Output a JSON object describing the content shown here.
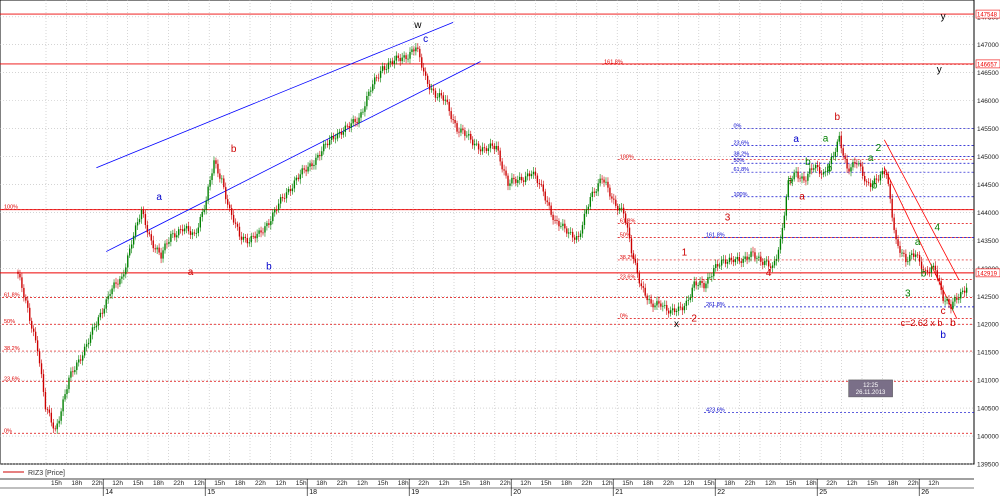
{
  "chart_data": {
    "type": "candlestick",
    "symbol_legend": "RIZ3 [Price]",
    "ylim": [
      139500,
      147800
    ],
    "price_ticks": [
      139500,
      140000,
      140500,
      141000,
      141500,
      142000,
      142500,
      143000,
      143500,
      144000,
      144500,
      145000,
      145500,
      146000,
      146500,
      147000,
      147500
    ],
    "price_tags": [
      {
        "text": "147548",
        "price": 147548
      },
      {
        "text": "146657",
        "price": 146657
      },
      {
        "text": "142919",
        "price": 142919
      }
    ],
    "time_labels": [
      "15h",
      "18h",
      "22h",
      "12h",
      "15h",
      "18h",
      "22h",
      "12h",
      "15h",
      "18h",
      "22h",
      "12h",
      "15h",
      "18h",
      "22h",
      "12h",
      "15h",
      "18h",
      "22h",
      "12h",
      "15h",
      "18h",
      "22h",
      "12h",
      "15h",
      "18h",
      "22h",
      "12h",
      "15h",
      "18h",
      "22h",
      "12h",
      "15h",
      "18h",
      "22h",
      "12h",
      "15h",
      "18h",
      "22h",
      "12h",
      "15h",
      "18h",
      "22h",
      "12h"
    ],
    "day_labels": [
      "14",
      "15",
      "18",
      "19",
      "20",
      "21",
      "22",
      "25",
      "26"
    ],
    "price_waypoints": [
      [
        0,
        142900
      ],
      [
        6,
        142100
      ],
      [
        10,
        141600
      ],
      [
        14,
        140500
      ],
      [
        19,
        140100
      ],
      [
        26,
        141000
      ],
      [
        33,
        141500
      ],
      [
        40,
        142000
      ],
      [
        47,
        142600
      ],
      [
        53,
        142800
      ],
      [
        58,
        143500
      ],
      [
        63,
        144000
      ],
      [
        68,
        143500
      ],
      [
        73,
        143200
      ],
      [
        78,
        143600
      ],
      [
        84,
        143700
      ],
      [
        90,
        143600
      ],
      [
        96,
        144200
      ],
      [
        100,
        144900
      ],
      [
        104,
        144600
      ],
      [
        108,
        144000
      ],
      [
        113,
        143600
      ],
      [
        118,
        143500
      ],
      [
        123,
        143600
      ],
      [
        129,
        143900
      ],
      [
        136,
        144300
      ],
      [
        142,
        144600
      ],
      [
        148,
        144800
      ],
      [
        155,
        145100
      ],
      [
        162,
        145400
      ],
      [
        168,
        145500
      ],
      [
        174,
        145700
      ],
      [
        180,
        146200
      ],
      [
        186,
        146600
      ],
      [
        192,
        146700
      ],
      [
        198,
        146800
      ],
      [
        203,
        146950
      ],
      [
        208,
        146400
      ],
      [
        213,
        146100
      ],
      [
        218,
        146000
      ],
      [
        224,
        145500
      ],
      [
        231,
        145300
      ],
      [
        238,
        145100
      ],
      [
        244,
        145200
      ],
      [
        250,
        144500
      ],
      [
        256,
        144600
      ],
      [
        262,
        144700
      ],
      [
        268,
        144400
      ],
      [
        274,
        143800
      ],
      [
        280,
        143700
      ],
      [
        286,
        143500
      ],
      [
        292,
        144300
      ],
      [
        298,
        144600
      ],
      [
        304,
        144200
      ],
      [
        309,
        144000
      ],
      [
        313,
        143300
      ],
      [
        318,
        142700
      ],
      [
        323,
        142300
      ],
      [
        328,
        142400
      ],
      [
        333,
        142200
      ],
      [
        337,
        142250
      ],
      [
        341,
        142400
      ],
      [
        345,
        142700
      ],
      [
        350,
        142700
      ],
      [
        355,
        143000
      ],
      [
        360,
        143100
      ],
      [
        365,
        143200
      ],
      [
        370,
        143100
      ],
      [
        375,
        143300
      ],
      [
        380,
        143100
      ],
      [
        385,
        143000
      ],
      [
        389,
        143500
      ],
      [
        393,
        144500
      ],
      [
        397,
        144700
      ],
      [
        401,
        144600
      ],
      [
        406,
        144800
      ],
      [
        411,
        144700
      ],
      [
        416,
        145000
      ],
      [
        419,
        145300
      ],
      [
        423,
        144800
      ],
      [
        428,
        144900
      ],
      [
        433,
        144500
      ],
      [
        438,
        144600
      ],
      [
        443,
        144700
      ],
      [
        448,
        143500
      ],
      [
        453,
        143100
      ],
      [
        458,
        143300
      ],
      [
        463,
        142900
      ],
      [
        468,
        143000
      ],
      [
        472,
        142500
      ],
      [
        476,
        142300
      ],
      [
        480,
        142500
      ],
      [
        484,
        142700
      ]
    ],
    "trend_channels": [
      {
        "color": "#0000ff",
        "points": [
          [
            40,
            144800
          ],
          [
            222,
            147400
          ]
        ]
      },
      {
        "color": "#0000ff",
        "points": [
          [
            45,
            143300
          ],
          [
            236,
            146700
          ]
        ]
      },
      {
        "color": "#ff0000",
        "points": [
          [
            442,
            145300
          ],
          [
            480,
            142800
          ]
        ]
      },
      {
        "color": "#ff0000",
        "points": [
          [
            442,
            144800
          ],
          [
            479,
            142100
          ]
        ]
      }
    ],
    "fib_sets": [
      {
        "color": "#dd0000",
        "x_start": -10,
        "levels": [
          {
            "label": "100%",
            "price": 144050
          },
          {
            "label": "61.8%",
            "price": 142480
          },
          {
            "label": "50%",
            "price": 142000
          },
          {
            "label": "38.2%",
            "price": 141520
          },
          {
            "label": "23.6%",
            "price": 140980
          },
          {
            "label": "0%",
            "price": 140050
          }
        ]
      },
      {
        "color": "#dd0000",
        "x_start": 306,
        "levels": [
          {
            "label": "100%",
            "price": 144950
          },
          {
            "label": "61.8%",
            "price": 143800
          },
          {
            "label": "50%",
            "price": 143550
          },
          {
            "label": "38.2%",
            "price": 143150
          },
          {
            "label": "23.6%",
            "price": 142800
          },
          {
            "label": "0%",
            "price": 142100
          }
        ]
      },
      {
        "color": "#0000cc",
        "x_start": 364,
        "levels": [
          {
            "label": "0%",
            "price": 145500
          },
          {
            "label": "23.6%",
            "price": 145200
          },
          {
            "label": "38.2%",
            "price": 145000
          },
          {
            "label": "50%",
            "price": 144880
          },
          {
            "label": "61.8%",
            "price": 144720
          },
          {
            "label": "100%",
            "price": 144280
          }
        ]
      },
      {
        "color": "#0000cc",
        "x_start": 350,
        "levels": [
          {
            "label": "161.8%",
            "price": 143550
          },
          {
            "label": "261.8%",
            "price": 142310
          },
          {
            "label": "423.6%",
            "price": 140420
          }
        ]
      },
      {
        "color": "#dd0000",
        "x_start": 298,
        "levels": [
          {
            "label": "161.8%",
            "price": 146650
          }
        ]
      }
    ],
    "red_hlines": [
      147548,
      146657,
      142919,
      144050
    ],
    "wave_labels": [
      {
        "text": "w",
        "bar": 204,
        "price": 147300,
        "color": "#000000"
      },
      {
        "text": "c",
        "bar": 208,
        "price": 147050,
        "color": "#0000cc"
      },
      {
        "text": "a",
        "bar": 72,
        "price": 144220,
        "color": "#0000cc"
      },
      {
        "text": "a",
        "bar": 88,
        "price": 142880,
        "color": "#cc0000"
      },
      {
        "text": "b",
        "bar": 110,
        "price": 145080,
        "color": "#cc0000"
      },
      {
        "text": "b",
        "bar": 128,
        "price": 142980,
        "color": "#0000cc"
      },
      {
        "text": "x",
        "bar": 336,
        "price": 141950,
        "color": "#000000"
      },
      {
        "text": "1",
        "bar": 340,
        "price": 143230,
        "color": "#cc0000"
      },
      {
        "text": "2",
        "bar": 345,
        "price": 142050,
        "color": "#cc0000"
      },
      {
        "text": "3",
        "bar": 362,
        "price": 143860,
        "color": "#cc0000"
      },
      {
        "text": "4",
        "bar": 383,
        "price": 142860,
        "color": "#cc0000"
      },
      {
        "text": "a",
        "bar": 397,
        "price": 145260,
        "color": "#0000cc"
      },
      {
        "text": "a",
        "bar": 400,
        "price": 144230,
        "color": "#cc0000"
      },
      {
        "text": "b",
        "bar": 418,
        "price": 145650,
        "color": "#cc0000"
      },
      {
        "text": "a",
        "bar": 412,
        "price": 145270,
        "color": "#008000"
      },
      {
        "text": "b",
        "bar": 414,
        "price": 144730,
        "color": "#008000"
      },
      {
        "text": "a",
        "bar": 394,
        "price": 144520,
        "color": "#008000"
      },
      {
        "text": "b",
        "bar": 403,
        "price": 144850,
        "color": "#008000"
      },
      {
        "text": "2",
        "bar": 439,
        "price": 145100,
        "color": "#008000"
      },
      {
        "text": "a",
        "bar": 435,
        "price": 144920,
        "color": "#008000"
      },
      {
        "text": "b",
        "bar": 437,
        "price": 144430,
        "color": "#008000"
      },
      {
        "text": "3",
        "bar": 454,
        "price": 142500,
        "color": "#008000"
      },
      {
        "text": "4",
        "bar": 469,
        "price": 143680,
        "color": "#008000"
      },
      {
        "text": "a",
        "bar": 459,
        "price": 143420,
        "color": "#008000"
      },
      {
        "text": "b",
        "bar": 462,
        "price": 142850,
        "color": "#008000"
      },
      {
        "text": "c",
        "bar": 472,
        "price": 142180,
        "color": "#cc0000"
      },
      {
        "text": "c=2.62 x b",
        "bar": 461,
        "price": 141970,
        "color": "#cc0000"
      },
      {
        "text": "b",
        "bar": 477,
        "price": 141970,
        "color": "#cc0000"
      },
      {
        "text": "b",
        "bar": 472,
        "price": 141750,
        "color": "#0000cc"
      },
      {
        "text": "y",
        "bar": 472,
        "price": 147450,
        "color": "#000000"
      },
      {
        "text": "y",
        "bar": 470,
        "price": 146500,
        "color": "#000000"
      }
    ],
    "tooltip": {
      "time": "12:25",
      "date": "26.11.2013",
      "bar": 435,
      "price": 140700
    },
    "colors": {
      "up": "#008000",
      "down": "#cc0000",
      "grid": "#bbbbbb",
      "fib_red": "#dd0000",
      "fib_blue": "#0000cc"
    }
  }
}
